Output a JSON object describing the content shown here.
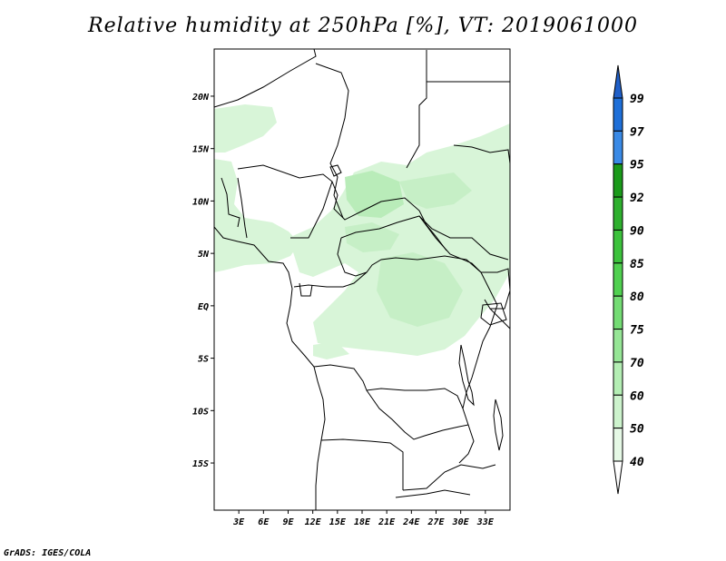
{
  "title": "Relative humidity at 250hPa [%], VT: 2019061000",
  "footer": "GrADS: IGES/COLA",
  "map": {
    "lat_range": [
      -19.5,
      24.5
    ],
    "lon_range": [
      0,
      36
    ],
    "lat_ticks": [
      "20N",
      "15N",
      "10N",
      "5N",
      "EQ",
      "5S",
      "10S",
      "15S"
    ],
    "lon_ticks": [
      "3E",
      "6E",
      "9E",
      "12E",
      "15E",
      "18E",
      "21E",
      "24E",
      "27E",
      "30E",
      "33E"
    ]
  },
  "colorbar": {
    "levels": [
      "99",
      "97",
      "95",
      "92",
      "90",
      "85",
      "80",
      "75",
      "70",
      "60",
      "50",
      "40"
    ],
    "colors": [
      "#1e6fd8",
      "#3a8ae6",
      "#1a9a1a",
      "#2eb02e",
      "#3cc23c",
      "#50d050",
      "#74dc74",
      "#96e696",
      "#b4eeb4",
      "#cdf3cd",
      "#e6f9e6",
      "#ffffff"
    ],
    "top_triangle_color": "#1f5fc8",
    "bottom_triangle_color": "#ffffff"
  },
  "colors": {
    "border": "#000000",
    "humid_light": "#d8f5d8",
    "humid_mid": "#b9ecb9"
  }
}
